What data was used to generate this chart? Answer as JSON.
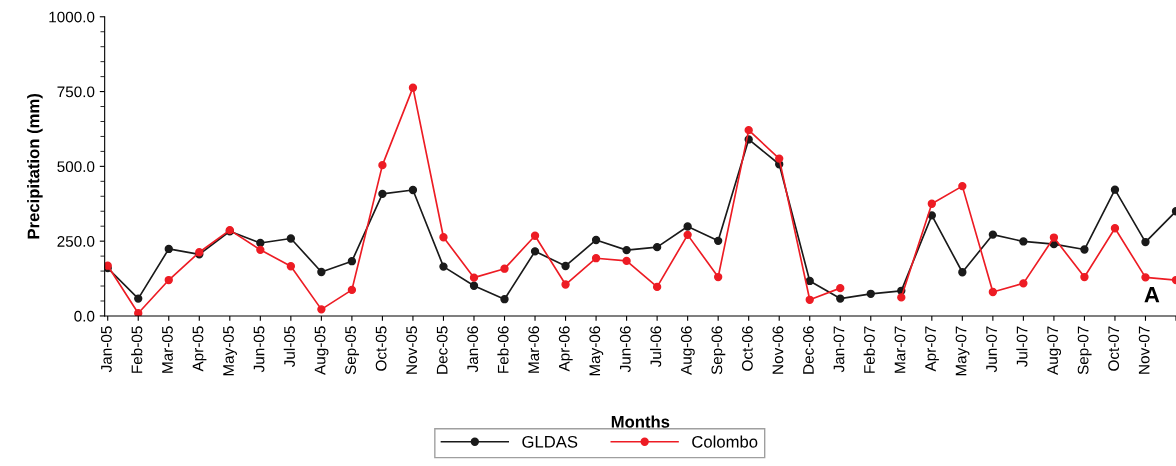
{
  "chart_data": {
    "type": "line",
    "xlabel": "Months",
    "ylabel": "Precipitation (mm)",
    "categories": [
      "Jan-05",
      "Feb-05",
      "Mar-05",
      "Apr-05",
      "May-05",
      "Jun-05",
      "Jul-05",
      "Aug-05",
      "Sep-05",
      "Oct-05",
      "Nov-05",
      "Dec-05",
      "Jan-06",
      "Feb-06",
      "Mar-06",
      "Apr-06",
      "May-06",
      "Jun-06",
      "Jul-06",
      "Aug-06",
      "Sep-06",
      "Oct-06",
      "Nov-06",
      "Dec-06",
      "Jan-07",
      "Feb-07",
      "Mar-07",
      "Apr-07",
      "May-07",
      "Jun-07",
      "Jul-07",
      "Aug-07",
      "Sep-07",
      "Oct-07",
      "Nov-07",
      null
    ],
    "series": [
      {
        "name": "GLDAS",
        "color": "#1a1a1a",
        "values": [
          160,
          58,
          224,
          206,
          283,
          244,
          259,
          147,
          183,
          408,
          421,
          165,
          101,
          56,
          216,
          167,
          254,
          220,
          230,
          299,
          251,
          590,
          507,
          117,
          58,
          74,
          84,
          336,
          146,
          272,
          249,
          240,
          222,
          422,
          247,
          350
        ]
      },
      {
        "name": "Colombo",
        "color": "#ed1c24",
        "values": [
          168,
          9,
          120,
          213,
          287,
          221,
          166,
          22,
          87,
          504,
          763,
          263,
          128,
          158,
          268,
          105,
          193,
          184,
          97,
          271,
          130,
          621,
          526,
          54,
          93,
          null,
          62,
          375,
          434,
          80,
          109,
          262,
          130,
          293,
          129,
          120
        ]
      }
    ],
    "ylim": [
      0,
      1000
    ],
    "yticks": [
      {
        "value": 0,
        "label": "0.0"
      },
      {
        "value": 250,
        "label": "250.0"
      },
      {
        "value": 500,
        "label": "500.0"
      },
      {
        "value": 750,
        "label": "750.0"
      },
      {
        "value": 1000,
        "label": "1000.0"
      }
    ],
    "annotations": [
      "A"
    ],
    "legend": "bottom",
    "marker": "circle",
    "line_style": "solid",
    "grid": false
  }
}
